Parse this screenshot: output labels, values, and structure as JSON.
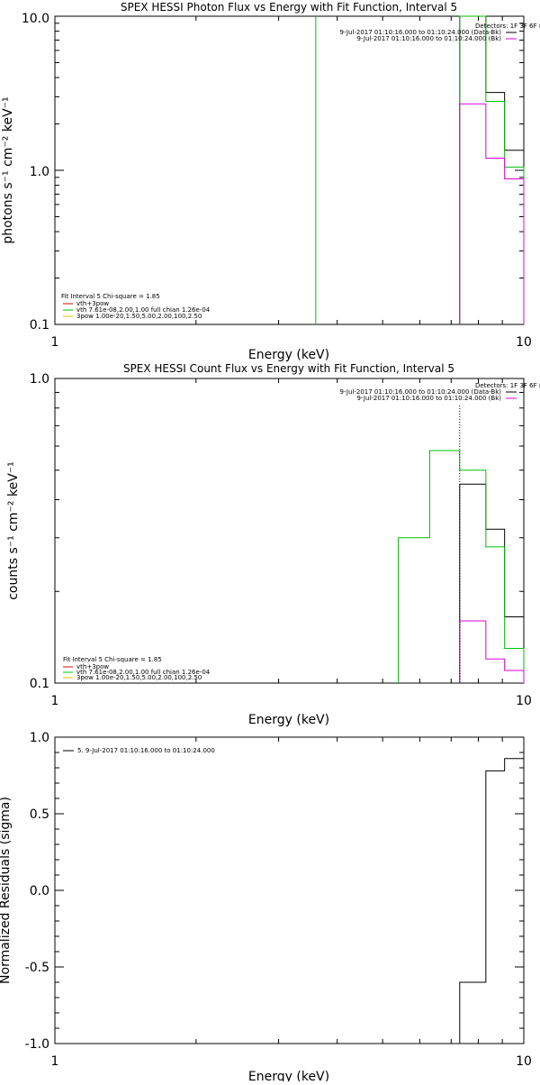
{
  "chart_data": [
    {
      "type": "line",
      "title": "SPEX HESSI Photon Flux vs Energy with Fit Function, Interval 5",
      "xlabel": "Energy (keV)",
      "ylabel": "photons s⁻¹ cm⁻² keV⁻¹",
      "xscale": "log",
      "yscale": "log",
      "xlim": [
        1,
        10
      ],
      "ylim": [
        0.1,
        10
      ],
      "x_ticks": [
        "1",
        "10"
      ],
      "y_ticks": [
        "0.1",
        "1.0",
        "10.0"
      ],
      "legend_topright": [
        {
          "text": "Detectors: 1F 3F 6F 8F",
          "color": ""
        },
        {
          "text": "9-Jul-2017 01:10:16.000 to 01:10:24.000 (Data-Bk)",
          "color": "#000000"
        },
        {
          "text": "9-Jul-2017 01:10:16.000 to 01:10:24.000 (Bk)",
          "color": "#e000e0"
        }
      ],
      "legend_bottomleft": [
        {
          "text": "Fit Interval 5   Chi-square = 1.85",
          "color": ""
        },
        {
          "text": "vth+3pow",
          "color": "#e00000"
        },
        {
          "text": "vth 7.61e-08,2.00,1.00  full chian 1.26e-04",
          "color": "#00c000"
        },
        {
          "text": "3pow 1.00e-20,1.50,5.00,2.00,100,2.50",
          "color": "#e0c000"
        }
      ],
      "series": [
        {
          "name": "9-Jul-2017 01:10:16.000 to 01:10:24.000 (Data-Bk)",
          "color": "#000000",
          "style": "step",
          "edges": [
            7.3,
            8.3,
            9.1,
            10
          ],
          "values": [
            10,
            3.2,
            1.35
          ]
        },
        {
          "name": "vth 7.61e-08,2.00,1.00  full chian 1.26e-04",
          "color": "#00c000",
          "style": "step",
          "edges": [
            7.3,
            8.3,
            9.1,
            10
          ],
          "values": [
            10,
            2.8,
            1.05
          ],
          "spike_x": 3.6
        },
        {
          "name": "9-Jul-2017 01:10:16.000 to 01:10:24.000 (Bk)",
          "color": "#e000e0",
          "style": "step",
          "edges": [
            7.3,
            8.3,
            9.1,
            10
          ],
          "values": [
            2.7,
            1.2,
            0.88
          ]
        }
      ]
    },
    {
      "type": "line",
      "title": "SPEX HESSI Count Flux vs Energy with Fit Function, Interval 5",
      "xlabel": "Energy (keV)",
      "ylabel": "counts s⁻¹ cm⁻² keV⁻¹",
      "xscale": "log",
      "yscale": "log",
      "xlim": [
        1,
        10
      ],
      "ylim": [
        0.1,
        1
      ],
      "x_ticks": [
        "1",
        "10"
      ],
      "y_ticks": [
        "0.1",
        "1.0"
      ],
      "legend_topright": [
        {
          "text": "Detectors: 1F 3F 6F 8F",
          "color": ""
        },
        {
          "text": "9-Jul-2017 01:10:16.000 to 01:10:24.000 (Data-Bk)",
          "color": "#000000"
        },
        {
          "text": "9-Jul-2017 01:10:16.000 to 01:10:24.000 (Bk)",
          "color": "#e000e0"
        }
      ],
      "legend_bottomleft": [
        {
          "text": "Fit Interval 5   Chi-square = 1.85",
          "color": ""
        },
        {
          "text": "vth+3pow",
          "color": "#e00000"
        },
        {
          "text": "vth 7.61e-08,2.00,1.00  full chian 1.26e-04",
          "color": "#00c000"
        },
        {
          "text": "3pow 1.00e-20,1.50,5.00,2.00,100,2.50",
          "color": "#e0c000"
        }
      ],
      "series": [
        {
          "name": "9-Jul-2017 01:10:16.000 to 01:10:24.000 (Data-Bk)",
          "color": "#000000",
          "style": "step",
          "edges": [
            7.3,
            8.3,
            9.1,
            10
          ],
          "values": [
            0.45,
            0.32,
            0.165
          ]
        },
        {
          "name": "vth 7.61e-08,2.00,1.00  full chian 1.26e-04",
          "color": "#00c000",
          "style": "step",
          "edges": [
            5.4,
            6.3,
            7.3,
            8.3,
            9.1,
            10
          ],
          "values": [
            0.3,
            0.58,
            0.5,
            0.28,
            0.13
          ]
        },
        {
          "name": "9-Jul-2017 01:10:16.000 to 01:10:24.000 (Bk)",
          "color": "#e000e0",
          "style": "step",
          "edges": [
            7.3,
            8.3,
            9.1,
            10
          ],
          "values": [
            0.16,
            0.12,
            0.11
          ]
        }
      ]
    },
    {
      "type": "line",
      "title": "",
      "xlabel": "Energy (keV)",
      "ylabel": "Normalized Residuals (sigma)",
      "xscale": "log",
      "yscale": "linear",
      "xlim": [
        1,
        10
      ],
      "ylim": [
        -1.0,
        1.0
      ],
      "x_ticks": [
        "1",
        "10"
      ],
      "y_ticks": [
        "-1.0",
        "-0.5",
        "0.0",
        "0.5",
        "1.0"
      ],
      "legend": [
        {
          "text": "5.  9-Jul-2017 01:10:16.000 to 01:10:24.000",
          "color": "#000000"
        }
      ],
      "series": [
        {
          "name": "5.  9-Jul-2017 01:10:16.000 to 01:10:24.000",
          "color": "#000000",
          "style": "step",
          "edges": [
            7.3,
            8.3,
            9.1,
            10
          ],
          "values": [
            -0.6,
            0.78,
            0.86
          ]
        }
      ]
    }
  ]
}
